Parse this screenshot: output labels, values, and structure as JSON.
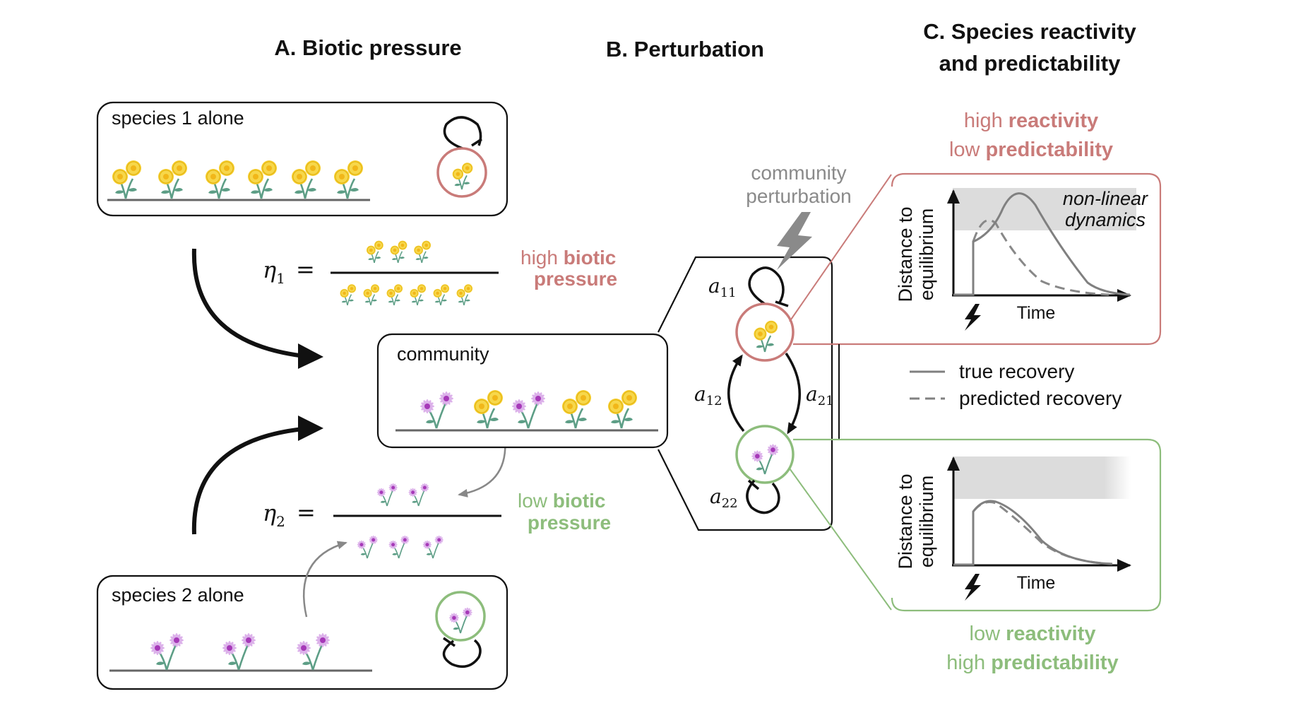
{
  "panels": {
    "a": {
      "title": "A. Biotic pressure"
    },
    "b": {
      "title": "B. Perturbation"
    },
    "c": {
      "title_line1": "C. Species reactivity",
      "title_line2": "and predictability"
    }
  },
  "boxes": {
    "species1": "species 1 alone",
    "species2": "species 2 alone",
    "community": "community"
  },
  "equations": {
    "eta1": {
      "symbol": "η",
      "subscript": "1",
      "equals": "="
    },
    "eta2": {
      "symbol": "η",
      "subscript": "2",
      "equals": "="
    }
  },
  "pressure_labels": {
    "high": {
      "plain": "high ",
      "bold1": "biotic",
      "bold2": "pressure"
    },
    "low": {
      "plain": "low ",
      "bold1": "biotic",
      "bold2": "pressure"
    }
  },
  "perturbation": {
    "line1": "community",
    "line2": "perturbation"
  },
  "interactions": {
    "a11": {
      "symbol": "a",
      "subscript": "11"
    },
    "a12": {
      "symbol": "a",
      "subscript": "12"
    },
    "a21": {
      "symbol": "a",
      "subscript": "21"
    },
    "a22": {
      "symbol": "a",
      "subscript": "22"
    }
  },
  "top_plot": {
    "header_line1_plain": "high ",
    "header_line1_bold": "reactivity",
    "header_line2_plain": "low ",
    "header_line2_bold": "predictability",
    "ylabel_line1": "Distance to",
    "ylabel_line2": "equilibrium",
    "xlabel": "Time",
    "annotation_line1": "non-linear",
    "annotation_line2": "dynamics"
  },
  "bottom_plot": {
    "header_line1_plain": "low ",
    "header_line1_bold": "reactivity",
    "header_line2_plain": "high ",
    "header_line2_bold": "predictability",
    "ylabel_line1": "Distance to",
    "ylabel_line2": "equilibrium",
    "xlabel": "Time"
  },
  "legend": {
    "true": "true recovery",
    "predicted": "predicted recovery"
  },
  "colors": {
    "high": "#c97b79",
    "low": "#8dbd7c",
    "curve": "#808080",
    "shade": "#dcdcdc",
    "yellow_petal": "#f5cd2e",
    "purple_petal": "#dcb1ea",
    "stem": "#5d9e86"
  },
  "icons": [
    "yellow-flower-icon",
    "purple-flower-icon",
    "lightning-icon",
    "self-loop-icon"
  ]
}
